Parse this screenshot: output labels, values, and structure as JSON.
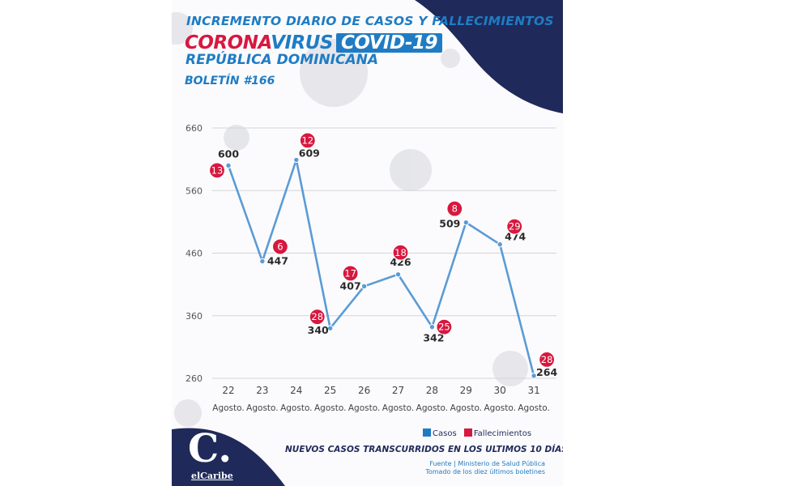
{
  "header": {
    "line1": "INCREMENTO DIARIO DE CASOS Y FALLECIMIENTOS",
    "corona": "CORONA",
    "virus": "VIRUS",
    "covid": "COVID-19",
    "country": "REPÚBLICA DOMINICANA",
    "bulletin": "BOLETÍN #166"
  },
  "colors": {
    "brand_blue": "#1f7cc4",
    "navy": "#1f2a5a",
    "red": "#d7183f",
    "line": "#5b9bd5"
  },
  "chart_data": {
    "type": "line",
    "categories": [
      "22",
      "23",
      "24",
      "25",
      "26",
      "27",
      "28",
      "29",
      "30",
      "31"
    ],
    "category_sublabel": "Agosto.",
    "series": [
      {
        "name": "Casos",
        "values": [
          600,
          447,
          609,
          340,
          407,
          426,
          342,
          509,
          474,
          264
        ]
      },
      {
        "name": "Fallecimientos",
        "values": [
          13,
          6,
          12,
          28,
          17,
          18,
          25,
          8,
          29,
          28
        ]
      }
    ],
    "yticks": [
      260,
      360,
      460,
      560,
      660
    ],
    "ylim": [
      260,
      660
    ],
    "grid": true,
    "legend": "bottom-right"
  },
  "footer": {
    "title": "NUEVOS CASOS TRANSCURRIDOS EN LOS ULTIMOS 10 DÍAS",
    "source_line1": "Fuente | Ministerio de Salud Pública",
    "source_line2": "Tomado de  los diez últimos boletines",
    "logo_letter": "C.",
    "logo_name": "elCaribe"
  }
}
